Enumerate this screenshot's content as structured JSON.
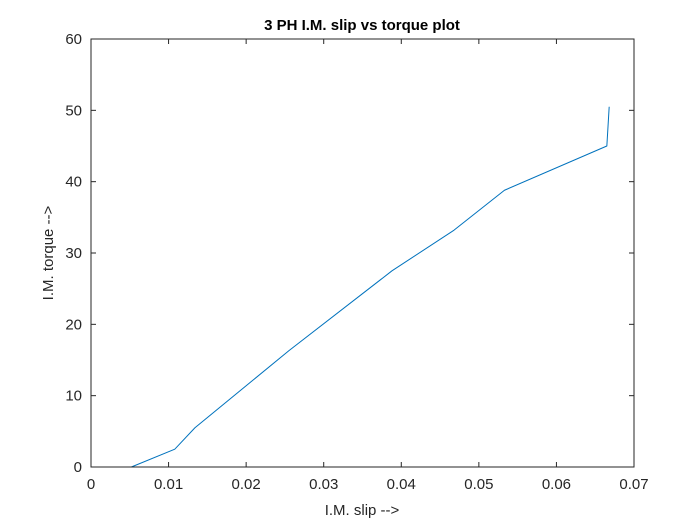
{
  "chart_data": {
    "type": "line",
    "title": "3 PH I.M. slip vs torque plot",
    "xlabel": "I.M. slip -->",
    "ylabel": "I.M. torque -->",
    "xlim": [
      0,
      0.07
    ],
    "ylim": [
      0,
      60
    ],
    "xticks": [
      0,
      0.01,
      0.02,
      0.03,
      0.04,
      0.05,
      0.06,
      0.07
    ],
    "xtick_labels": [
      "0",
      "0.01",
      "0.02",
      "0.03",
      "0.04",
      "0.05",
      "0.06",
      "0.07"
    ],
    "yticks": [
      0,
      10,
      20,
      30,
      40,
      50,
      60
    ],
    "ytick_labels": [
      "0",
      "10",
      "20",
      "30",
      "40",
      "50",
      "60"
    ],
    "grid": false,
    "series": [
      {
        "color": "#0072BD",
        "x": [
          0.0052,
          0.0108,
          0.0134,
          0.0255,
          0.0388,
          0.0468,
          0.0533,
          0.0665,
          0.0668
        ],
        "y": [
          0,
          2.5,
          5.5,
          16.3,
          27.5,
          33.2,
          38.8,
          45.0,
          50.5
        ]
      }
    ]
  }
}
